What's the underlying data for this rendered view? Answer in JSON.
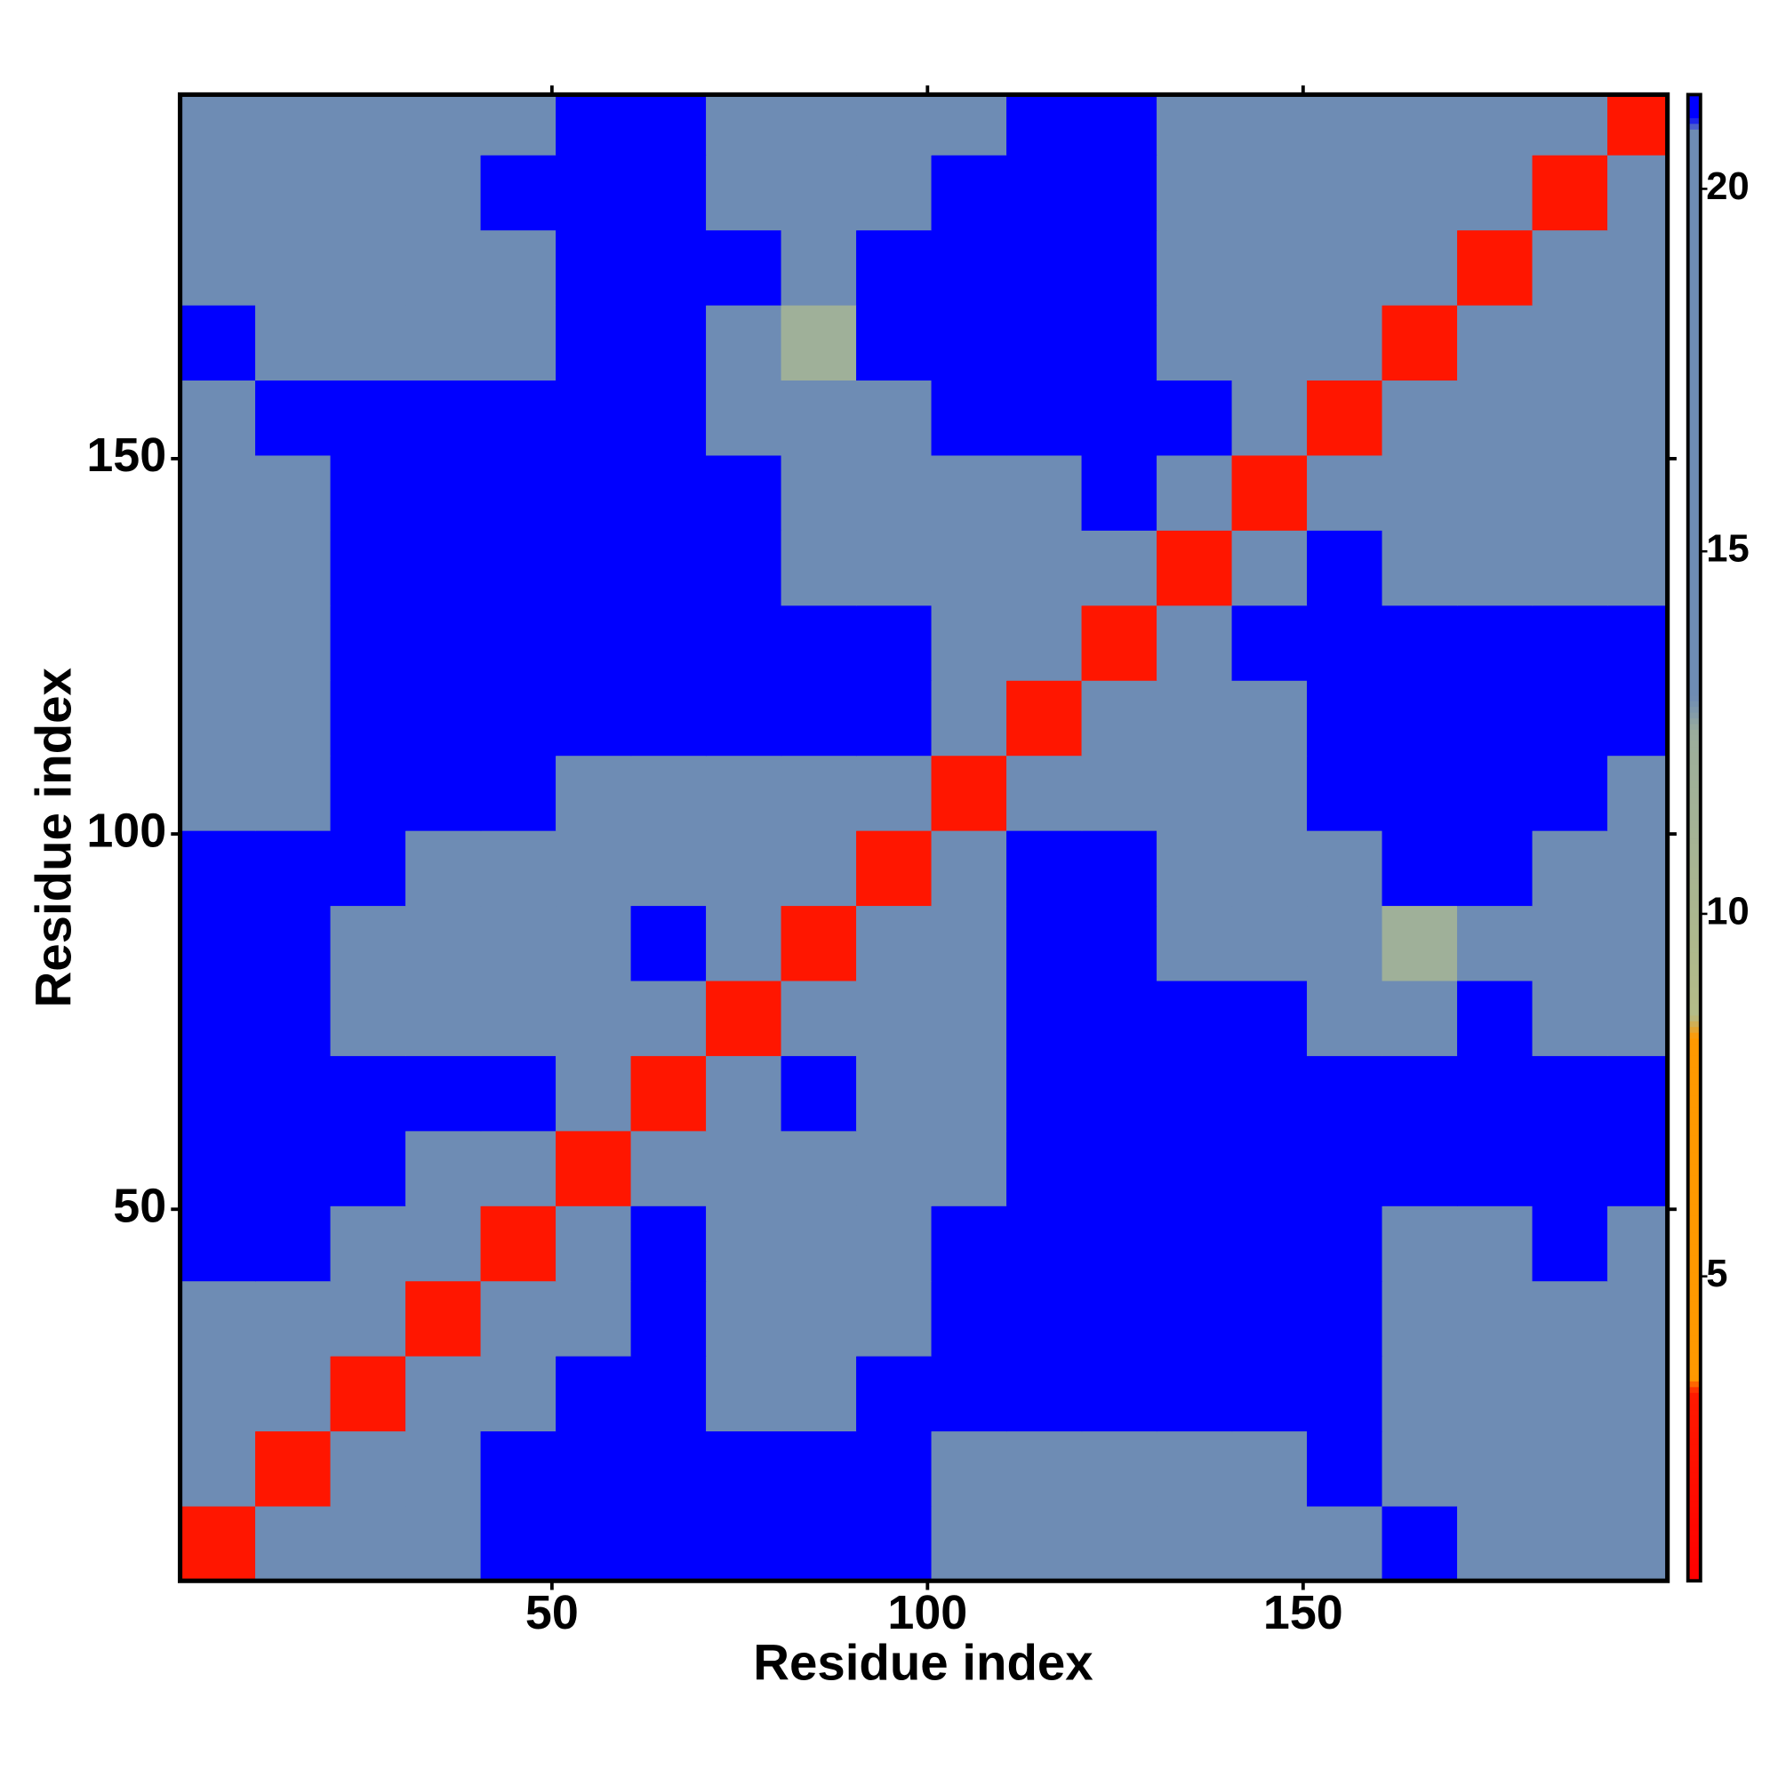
{
  "chart_data": {
    "type": "heatmap",
    "xlabel": "Residue index",
    "ylabel": "Residue index",
    "x_bins": [
      0.5,
      10.5,
      20.5,
      30.5,
      40.5,
      50.5,
      60.5,
      70.5,
      80.5,
      90.5,
      100.5,
      110.5,
      120.5,
      130.5,
      140.5,
      150.5,
      160.5,
      170.5,
      180.5,
      190.5,
      198.5
    ],
    "y_bins": [
      0.5,
      10.5,
      20.5,
      30.5,
      40.5,
      50.5,
      60.5,
      70.5,
      80.5,
      90.5,
      100.5,
      110.5,
      120.5,
      130.5,
      140.5,
      150.5,
      160.5,
      170.5,
      180.5,
      190.5,
      198.5
    ],
    "xlim": [
      0.5,
      198.5
    ],
    "ylim": [
      0.5,
      198.5
    ],
    "xticks": [
      50,
      100,
      150
    ],
    "yticks": [
      50,
      100,
      150
    ],
    "clim": [
      0.8,
      21.3
    ],
    "cticks": [
      5,
      10,
      15,
      20
    ],
    "colorscale": [
      {
        "value": 0.8,
        "color": "#ff0000"
      },
      {
        "value": 3.4,
        "color": "#ff1a00"
      },
      {
        "value": 3.6,
        "color": "#ff9900"
      },
      {
        "value": 8.3,
        "color": "#ff9900"
      },
      {
        "value": 8.6,
        "color": "#b4bc88"
      },
      {
        "value": 12.5,
        "color": "#9cae9c"
      },
      {
        "value": 13,
        "color": "#6e8cb4"
      },
      {
        "value": 20.8,
        "color": "#6e8cb4"
      },
      {
        "value": 21,
        "color": "#0000ff"
      },
      {
        "value": 21.3,
        "color": "#0000ff"
      }
    ],
    "z": [
      [
        3,
        13,
        15,
        17,
        21,
        21,
        21,
        21,
        21,
        21,
        15,
        16,
        17,
        15,
        15,
        20,
        21,
        17,
        14,
        14
      ],
      [
        13,
        3,
        13,
        16,
        21,
        21,
        21,
        21,
        21,
        21,
        16,
        17,
        19,
        16,
        17,
        21,
        18,
        16,
        14,
        14
      ],
      [
        15,
        13,
        3,
        13,
        16,
        21,
        21,
        16,
        17,
        21,
        21,
        21,
        21,
        21,
        21,
        21,
        16,
        15,
        15,
        15
      ],
      [
        17,
        16,
        13,
        3,
        13,
        17,
        21,
        15,
        15,
        18,
        21,
        21,
        21,
        21,
        21,
        21,
        16,
        15,
        17,
        16
      ],
      [
        21,
        21,
        16,
        13,
        3,
        13,
        21,
        15,
        14,
        17,
        21,
        21,
        21,
        21,
        21,
        21,
        17,
        17,
        21,
        18
      ],
      [
        21,
        21,
        21,
        17,
        13,
        3,
        13,
        17,
        18,
        16,
        19,
        21,
        21,
        21,
        21,
        21,
        21,
        21,
        21,
        21
      ],
      [
        21,
        21,
        21,
        21,
        21,
        13,
        3,
        13,
        21,
        16,
        17,
        21,
        21,
        21,
        21,
        21,
        21,
        21,
        21,
        21
      ],
      [
        21,
        21,
        16,
        15,
        15,
        17,
        13,
        3,
        13,
        14,
        15,
        21,
        21,
        21,
        21,
        17,
        15,
        21,
        17,
        15
      ],
      [
        21,
        21,
        17,
        15,
        14,
        18,
        21,
        13,
        3,
        13,
        14,
        21,
        21,
        16,
        17,
        14,
        12,
        15,
        18,
        16
      ],
      [
        21,
        21,
        21,
        18,
        17,
        16,
        16,
        14,
        13,
        3,
        13,
        21,
        21,
        17,
        15,
        16,
        21,
        21,
        18,
        15
      ],
      [
        15,
        16,
        21,
        21,
        21,
        19,
        17,
        15,
        14,
        13,
        3,
        13,
        15,
        14,
        15,
        21,
        21,
        21,
        21,
        17
      ],
      [
        16,
        17,
        21,
        21,
        21,
        21,
        21,
        21,
        21,
        21,
        13,
        3,
        13,
        14,
        19,
        21,
        21,
        21,
        21,
        21
      ],
      [
        17,
        19,
        21,
        21,
        21,
        21,
        21,
        21,
        21,
        21,
        15,
        13,
        3,
        13,
        21,
        21,
        21,
        21,
        21,
        21
      ],
      [
        15,
        16,
        21,
        21,
        21,
        21,
        21,
        21,
        16,
        17,
        14,
        14,
        13,
        3,
        13,
        21,
        15,
        17,
        15,
        16
      ],
      [
        15,
        17,
        21,
        21,
        21,
        21,
        21,
        21,
        17,
        15,
        15,
        19,
        21,
        13,
        3,
        13,
        16,
        15,
        14,
        15
      ],
      [
        20,
        21,
        21,
        21,
        21,
        21,
        21,
        17,
        14,
        16,
        21,
        21,
        21,
        21,
        13,
        3,
        13,
        14,
        15,
        17
      ],
      [
        21,
        18,
        16,
        16,
        17,
        21,
        21,
        15,
        12,
        21,
        21,
        21,
        21,
        15,
        16,
        13,
        3,
        13,
        14,
        14
      ],
      [
        17,
        16,
        15,
        15,
        17,
        21,
        21,
        21,
        15,
        21,
        21,
        21,
        21,
        17,
        15,
        14,
        13,
        3,
        13,
        15
      ],
      [
        14,
        14,
        15,
        17,
        21,
        21,
        21,
        17,
        18,
        18,
        21,
        21,
        21,
        15,
        14,
        15,
        14,
        13,
        3,
        13
      ],
      [
        14,
        14,
        15,
        16,
        18,
        21,
        21,
        15,
        16,
        15,
        17,
        21,
        21,
        16,
        15,
        17,
        14,
        15,
        13,
        3
      ]
    ]
  }
}
